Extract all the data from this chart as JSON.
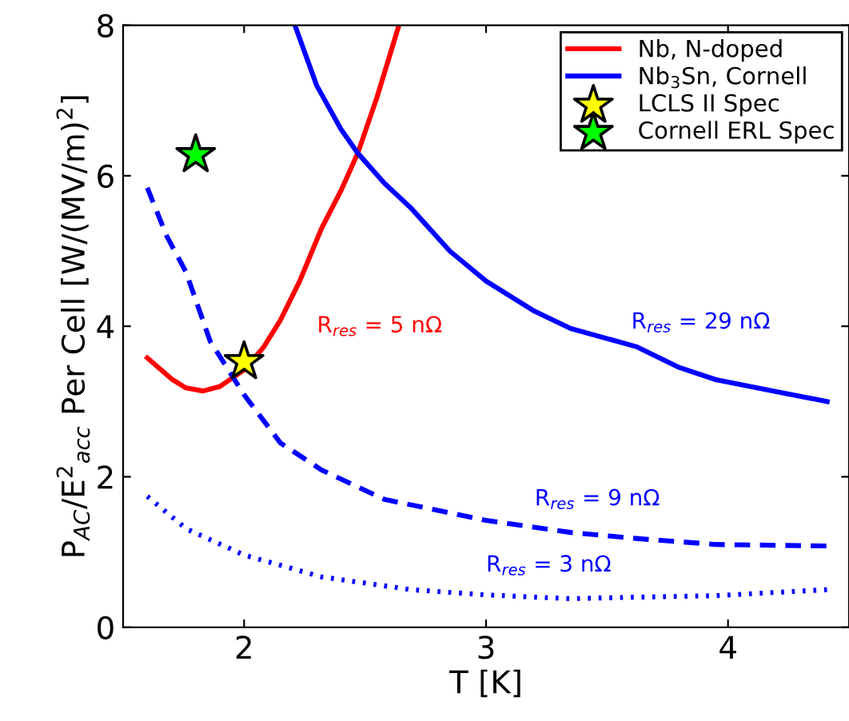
{
  "chart_data": {
    "type": "line",
    "xlabel": "T [K]",
    "ylabel": "P$_{AC}$/E$^{2}$$_{acc}$ Per Cell [W/(MV/m)$^{2}$]",
    "xlim": [
      1.5,
      4.5
    ],
    "ylim": [
      0,
      8
    ],
    "xticks": [
      2,
      3,
      4
    ],
    "yticks": [
      0,
      2,
      4,
      6,
      8
    ],
    "grid": false,
    "legend": "top right",
    "marker": "none",
    "series": [
      {
        "name": "Nb, N-doped",
        "color": "#ff0000",
        "line_style": "solid",
        "x": [
          1.6,
          1.7,
          1.76,
          1.83,
          1.9,
          2.0,
          2.08,
          2.15,
          2.23,
          2.32,
          2.4,
          2.47,
          2.55,
          2.64
        ],
        "values": [
          3.58,
          3.3,
          3.18,
          3.14,
          3.2,
          3.42,
          3.72,
          4.08,
          4.6,
          5.3,
          5.8,
          6.3,
          7.05,
          8.0
        ]
      },
      {
        "name": "Nb$_{3}$Sn, Cornell",
        "color": "#0000ff",
        "line_style": "solid",
        "x": [
          2.21,
          2.3,
          2.4,
          2.47,
          2.58,
          2.69,
          2.85,
          3.0,
          3.2,
          3.35,
          3.62,
          3.8,
          3.95,
          4.2,
          4.41
        ],
        "values": [
          8.0,
          7.2,
          6.62,
          6.3,
          5.9,
          5.57,
          5.0,
          4.6,
          4.2,
          3.97,
          3.73,
          3.45,
          3.29,
          3.13,
          3.0
        ]
      },
      {
        "color": "#0000ff",
        "line_style": "dashed",
        "x": [
          1.6,
          1.68,
          1.76,
          1.86,
          2.0,
          2.15,
          2.32,
          2.58,
          3.0,
          3.35,
          3.62,
          3.95,
          4.41
        ],
        "values": [
          5.84,
          5.2,
          4.72,
          3.8,
          3.09,
          2.45,
          2.09,
          1.7,
          1.42,
          1.26,
          1.18,
          1.1,
          1.08
        ]
      },
      {
        "color": "#0000ff",
        "line_style": "dotted",
        "x": [
          1.6,
          1.76,
          2.0,
          2.32,
          2.69,
          3.0,
          3.35,
          3.62,
          3.95,
          4.41
        ],
        "values": [
          1.74,
          1.31,
          0.96,
          0.67,
          0.5,
          0.43,
          0.38,
          0.4,
          0.42,
          0.5
        ]
      },
      {
        "name": "LCLS II Spec",
        "type": "scatter",
        "marker": "star",
        "color": "#ffff00",
        "x": [
          2.0
        ],
        "values": [
          3.53
        ]
      },
      {
        "name": "Cornell ERL Spec",
        "type": "scatter",
        "marker": "star",
        "color": "#00ff00",
        "x": [
          1.8
        ],
        "values": [
          6.28
        ]
      }
    ],
    "annotations": [
      "R$_{res}$ = 5 nΩ",
      "R$_{res}$ = 29 nΩ",
      "R$_{res}$ = 9 nΩ",
      "R$_{res}$ = 3 nΩ"
    ]
  }
}
